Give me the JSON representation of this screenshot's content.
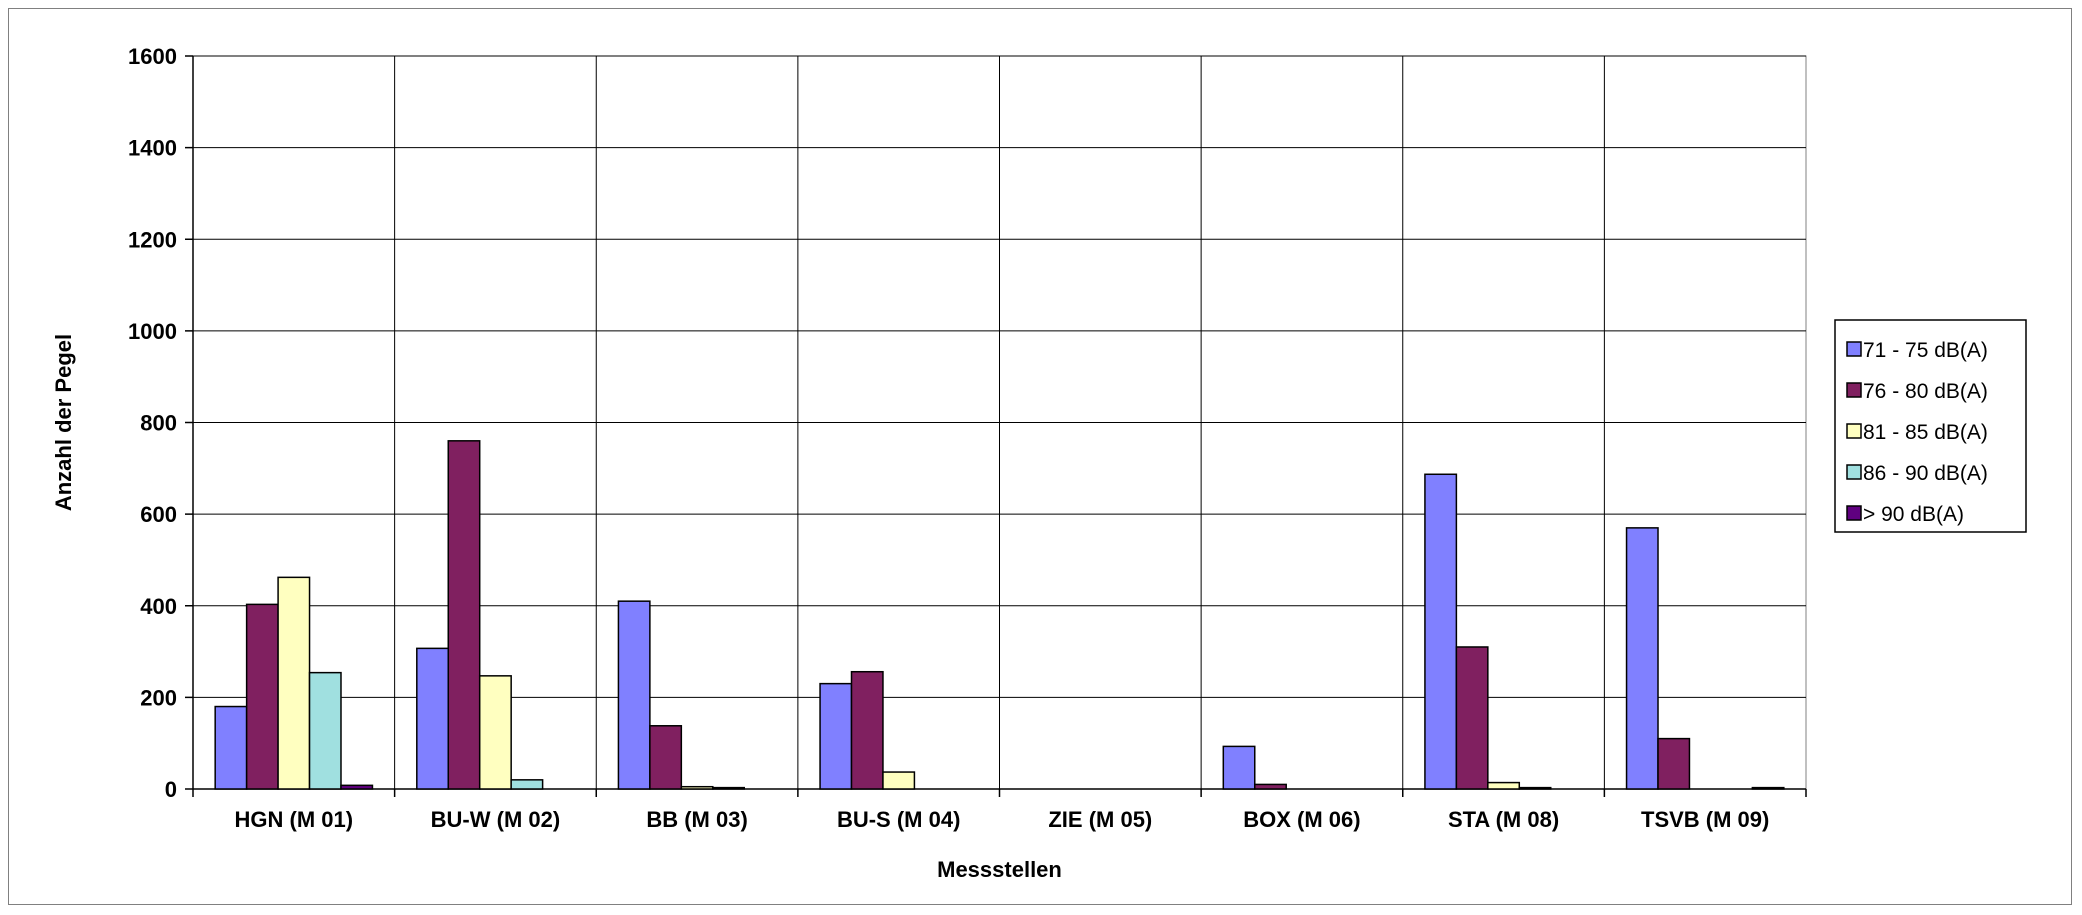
{
  "chart_data": {
    "type": "bar",
    "title": "",
    "xlabel": "Messstellen",
    "ylabel": "Anzahl der Pegel",
    "ylim": [
      0,
      1600
    ],
    "yticks": [
      0,
      200,
      400,
      600,
      800,
      1000,
      1200,
      1400,
      1600
    ],
    "grid": true,
    "legend_position": "right",
    "categories": [
      "HGN (M 01)",
      "BU-W (M 02)",
      "BB (M 03)",
      "BU-S (M 04)",
      "ZIE (M 05)",
      "BOX (M 06)",
      "STA (M 08)",
      "TSVB (M 09)"
    ],
    "series": [
      {
        "name": "71 - 75 dB(A)",
        "color": "#8080FF",
        "values": [
          180,
          307,
          410,
          230,
          0,
          93,
          687,
          570
        ]
      },
      {
        "name": "76 - 80 dB(A)",
        "color": "#802060",
        "values": [
          403,
          760,
          138,
          256,
          0,
          10,
          310,
          110
        ]
      },
      {
        "name": "81 - 85 dB(A)",
        "color": "#FFFFC0",
        "values": [
          462,
          247,
          5,
          37,
          0,
          0,
          14,
          0
        ]
      },
      {
        "name": "86 - 90 dB(A)",
        "color": "#A0E0E0",
        "values": [
          254,
          20,
          3,
          0,
          0,
          0,
          3,
          0
        ]
      },
      {
        "name": "> 90 dB(A)",
        "color": "#600080",
        "values": [
          8,
          0,
          0,
          0,
          0,
          0,
          0,
          3
        ]
      }
    ]
  }
}
